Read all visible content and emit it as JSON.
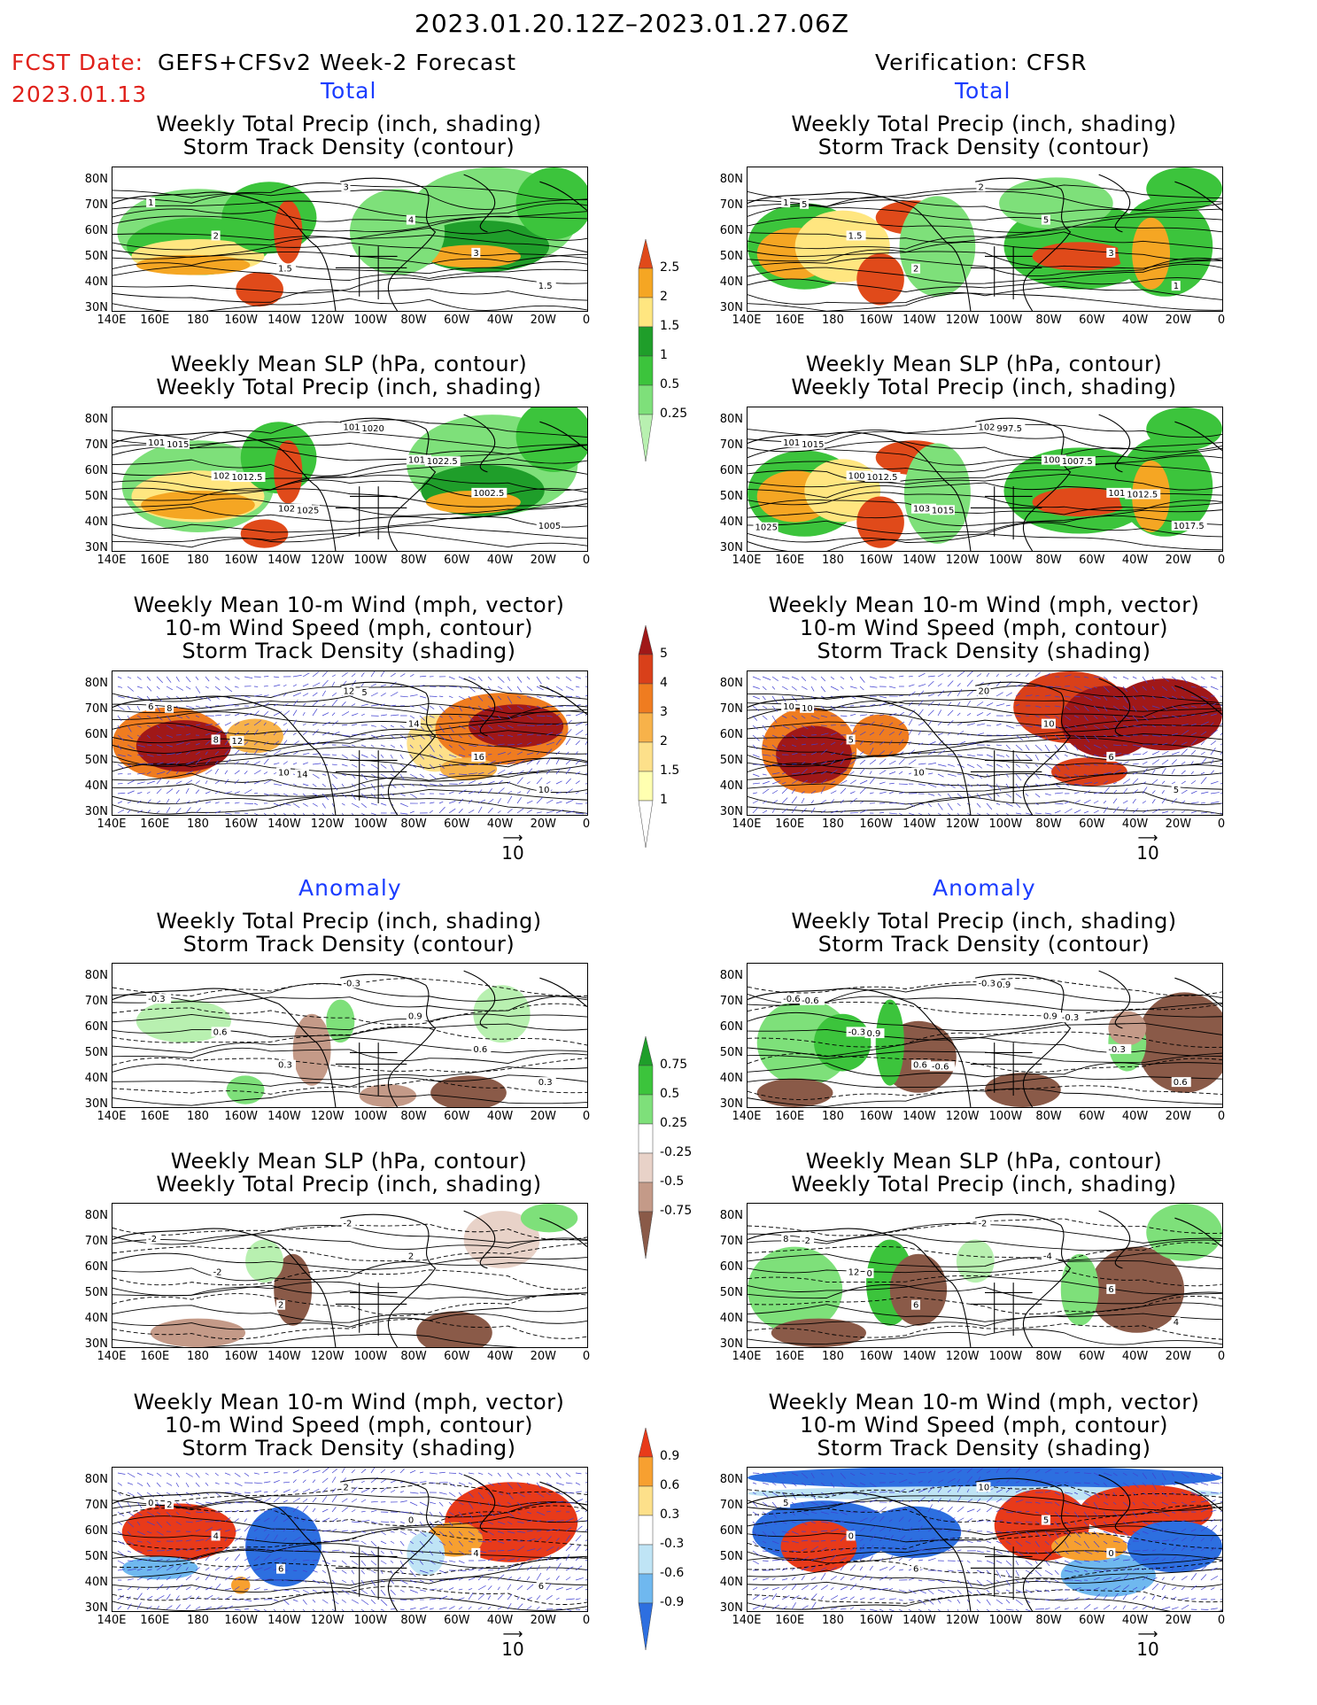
{
  "header": {
    "date_range": "2023.01.20.12Z–2023.01.27.06Z",
    "fcst_label": "FCST Date:",
    "fcst_model": "GEFS+CFSv2 Week-2 Forecast",
    "fcst_date": "2023.01.13",
    "verification": "Verification: CFSR"
  },
  "sections": {
    "total": "Total",
    "anomaly": "Anomaly"
  },
  "panel_titles": {
    "precip_storm": "Weekly Total Precip (inch, shading)\nStorm Track Density (contour)",
    "slp_precip": "Weekly Mean SLP (hPa, contour)\nWeekly Total Precip (inch, shading)",
    "wind": "Weekly Mean 10-m Wind (mph, vector)\n10-m Wind Speed (mph, contour)\nStorm Track Density (shading)"
  },
  "axes": {
    "lat_ticks": [
      "80N",
      "70N",
      "60N",
      "50N",
      "40N",
      "30N"
    ],
    "lon_ticks": [
      "140E",
      "160E",
      "180",
      "160W",
      "140W",
      "120W",
      "100W",
      "80W",
      "60W",
      "40W",
      "20W",
      "0"
    ]
  },
  "colorbars": {
    "precip_total": [
      "2.5",
      "2",
      "1.5",
      "1",
      "0.5",
      "0.25"
    ],
    "storm_total": [
      "5",
      "4",
      "3",
      "2",
      "1.5",
      "1"
    ],
    "precip_anom": [
      "0.75",
      "0.5",
      "0.25",
      "-0.25",
      "-0.5",
      "-0.75"
    ],
    "storm_anom": [
      "0.9",
      "0.6",
      "0.3",
      "-0.3",
      "-0.6",
      "-0.9"
    ]
  },
  "colors": {
    "precip_scale": [
      "#b8f0b0",
      "#7ee07a",
      "#3cc43c",
      "#1f9e2a",
      "#ffe680",
      "#f5a623",
      "#e04a1a"
    ],
    "storm_scale": [
      "#ffffb0",
      "#fde08a",
      "#f7b24a",
      "#ef7c20",
      "#d9401a",
      "#a01818"
    ],
    "anom_dry": [
      "#e8d2c8",
      "#c49a88",
      "#8a5a48"
    ],
    "storm_anom_neg": [
      "#bfe4f5",
      "#6fb8ef",
      "#2d6fe0"
    ],
    "vector": "#4040d0"
  },
  "contour_labels": {
    "f_precip_total": [
      "1",
      "2",
      "1.5",
      "3",
      "4",
      "3",
      "1.5"
    ],
    "v_precip_total": [
      "1",
      "1.5",
      "2",
      "2",
      "5",
      "3",
      "1",
      "5"
    ],
    "f_slp_total": [
      "1015",
      "1025",
      "1022.5",
      "1012.5",
      "1010",
      "1002.5",
      "1005",
      "1015",
      "1012.5",
      "1025",
      "1020",
      "1022.5"
    ],
    "v_slp_total": [
      "1010",
      "1005",
      "1030",
      "1022.5",
      "1005",
      "1010",
      "1017.5",
      "1015",
      "1012.5",
      "1015",
      "997.5",
      "1007.5",
      "1012.5",
      "1025"
    ],
    "f_wind_total": [
      "6",
      "8",
      "10",
      "12",
      "14",
      "16",
      "10",
      "8",
      "12",
      "14",
      "5"
    ],
    "v_wind_total": [
      "10",
      "5",
      "10",
      "20",
      "10",
      "6",
      "5",
      "10"
    ],
    "f_precip_anom": [
      "-0.3",
      "0.6",
      "0.3",
      "-0.3",
      "0.9",
      "0.6",
      "0.3"
    ],
    "v_precip_anom": [
      "-0.6",
      "-0.3",
      "0.6",
      "-0.3",
      "0.9",
      "-0.3",
      "0.6",
      "-0.6",
      "0.9",
      "-0.6",
      "0.9",
      "-0.3"
    ],
    "f_slp_anom": [
      "-2",
      "-2",
      "2",
      "-2",
      "2"
    ],
    "v_slp_anom": [
      "8",
      "12",
      "6",
      "-2",
      "-4",
      "6",
      "4",
      "-2",
      "0"
    ],
    "f_wind_anom": [
      "0",
      "4",
      "6",
      "2",
      "0",
      "4",
      "6",
      "2"
    ],
    "v_wind_anom": [
      "5",
      "0",
      "6",
      "10",
      "5",
      "0"
    ]
  },
  "vector_ref": "10"
}
